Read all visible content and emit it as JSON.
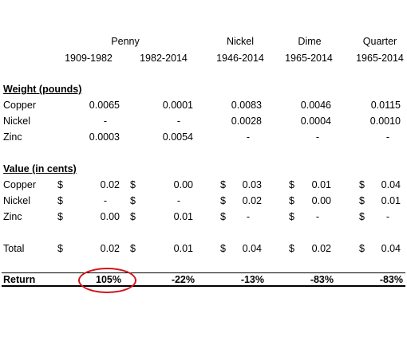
{
  "headers": {
    "penny": "Penny",
    "nickel": "Nickel",
    "dime": "Dime",
    "quarter": "Quarter",
    "years": [
      "1909-1982",
      "1982-2014",
      "1946-2014",
      "1965-2014",
      "1965-2014"
    ]
  },
  "weight": {
    "title": "Weight (pounds)",
    "rows": [
      {
        "label": "Copper",
        "vals": [
          "0.0065",
          "0.0001",
          "0.0083",
          "0.0046",
          "0.0115"
        ]
      },
      {
        "label": "Nickel",
        "vals": [
          "-",
          "-",
          "0.0028",
          "0.0004",
          "0.0010"
        ]
      },
      {
        "label": "Zinc",
        "vals": [
          "0.0003",
          "0.0054",
          "-",
          "-",
          "-"
        ]
      }
    ]
  },
  "value": {
    "title": "Value (in cents)",
    "currency": "$",
    "rows": [
      {
        "label": "Copper",
        "vals": [
          "0.02",
          "0.00",
          "0.03",
          "0.01",
          "0.04"
        ]
      },
      {
        "label": "Nickel",
        "vals": [
          "-",
          "-",
          "0.02",
          "0.00",
          "0.01"
        ]
      },
      {
        "label": "Zinc",
        "vals": [
          "0.00",
          "0.01",
          "-",
          "-",
          "-"
        ]
      }
    ],
    "total": {
      "label": "Total",
      "vals": [
        "0.02",
        "0.01",
        "0.04",
        "0.02",
        "0.04"
      ]
    }
  },
  "return_row": {
    "label": "Return",
    "vals": [
      "105%",
      "-22%",
      "-13%",
      "-83%",
      "-83%"
    ],
    "highlight_color": "#d4141c"
  }
}
